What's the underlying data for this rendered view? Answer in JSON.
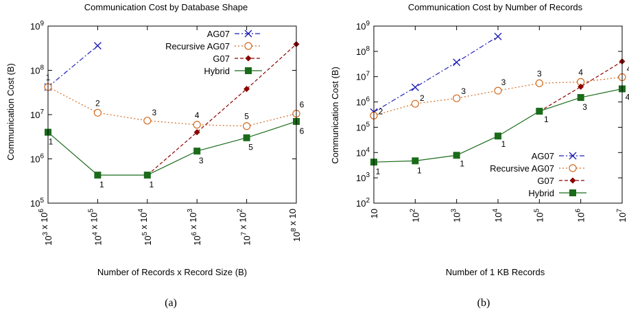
{
  "chart_data": [
    {
      "type": "line",
      "title": "Communication Cost by Database Shape",
      "xlabel": "Number of Records x Record Size (B)",
      "ylabel": "Communication Cost (B)",
      "y_scale": "log",
      "ylim": [
        100000,
        1000000000
      ],
      "grid": false,
      "legend_position": "top-right",
      "panel_label": "(a)",
      "x_ticks": [
        {
          "base": "10",
          "exp": "3",
          "suffix": " x 10",
          "suffix_exp": "6"
        },
        {
          "base": "10",
          "exp": "4",
          "suffix": " x 10",
          "suffix_exp": "5"
        },
        {
          "base": "10",
          "exp": "5",
          "suffix": " x 10",
          "suffix_exp": "4"
        },
        {
          "base": "10",
          "exp": "6",
          "suffix": " x 10",
          "suffix_exp": "3"
        },
        {
          "base": "10",
          "exp": "7",
          "suffix": " x 10",
          "suffix_exp": "2"
        },
        {
          "base": "10",
          "exp": "8",
          "suffix": " x 10",
          "suffix_exp": ""
        }
      ],
      "y_ticks": [
        {
          "base": "10",
          "exp": "5",
          "value": 100000
        },
        {
          "base": "10",
          "exp": "6",
          "value": 1000000
        },
        {
          "base": "10",
          "exp": "7",
          "value": 10000000
        },
        {
          "base": "10",
          "exp": "8",
          "value": 100000000
        },
        {
          "base": "10",
          "exp": "9",
          "value": 1000000000
        }
      ],
      "series": [
        {
          "name": "AG07",
          "color": "#1f1fb8",
          "marker": "x",
          "dash": "dashdot",
          "x": [
            0,
            1
          ],
          "values": [
            42000000,
            360000000
          ],
          "labels": []
        },
        {
          "name": "Recursive AG07",
          "color": "#d2691e",
          "marker": "circle",
          "dash": "dotted",
          "x": [
            0,
            1,
            2,
            3,
            4,
            5
          ],
          "values": [
            42000000,
            11000000,
            7300000,
            5900000,
            5500000,
            10500000
          ],
          "labels": [
            "1",
            "2",
            "3",
            "4",
            "5",
            "6"
          ]
        },
        {
          "name": "G07",
          "color": "#8b0000",
          "marker": "diamond",
          "dash": "dashed",
          "x": [
            2,
            3,
            4,
            5
          ],
          "values": [
            430000,
            4000000,
            38000000,
            390000000
          ],
          "labels": []
        },
        {
          "name": "Hybrid",
          "color": "#1a6b1a",
          "marker": "square",
          "dash": "solid",
          "x": [
            0,
            1,
            2,
            3,
            4,
            5
          ],
          "values": [
            4000000,
            430000,
            430000,
            1500000,
            3000000,
            7000000
          ],
          "labels": [
            "1",
            "1",
            "1",
            "3",
            "5",
            "6"
          ]
        }
      ]
    },
    {
      "type": "line",
      "title": "Communication Cost by Number of Records",
      "xlabel": "Number of 1 KB Records",
      "ylabel": "Communication Cost (B)",
      "y_scale": "log",
      "x_scale": "log",
      "ylim": [
        100,
        1000000000
      ],
      "grid": false,
      "legend_position": "bottom-right",
      "panel_label": "(b)",
      "x_ticks": [
        {
          "base": "10",
          "exp": ""
        },
        {
          "base": "10",
          "exp": "2"
        },
        {
          "base": "10",
          "exp": "3"
        },
        {
          "base": "10",
          "exp": "4"
        },
        {
          "base": "10",
          "exp": "5"
        },
        {
          "base": "10",
          "exp": "6"
        },
        {
          "base": "10",
          "exp": "7"
        }
      ],
      "y_ticks": [
        {
          "base": "10",
          "exp": "2",
          "value": 100
        },
        {
          "base": "10",
          "exp": "3",
          "value": 1000
        },
        {
          "base": "10",
          "exp": "4",
          "value": 10000
        },
        {
          "base": "10",
          "exp": "5",
          "value": 100000
        },
        {
          "base": "10",
          "exp": "6",
          "value": 1000000
        },
        {
          "base": "10",
          "exp": "7",
          "value": 10000000
        },
        {
          "base": "10",
          "exp": "8",
          "value": 100000000
        },
        {
          "base": "10",
          "exp": "9",
          "value": 1000000000
        }
      ],
      "series": [
        {
          "name": "AG07",
          "color": "#1f1fb8",
          "marker": "x",
          "dash": "dashdot",
          "x": [
            10,
            100,
            1000,
            10000
          ],
          "values": [
            400000,
            3800000,
            37000000,
            390000000
          ],
          "labels": []
        },
        {
          "name": "Recursive AG07",
          "color": "#d2691e",
          "marker": "circle",
          "dash": "dotted",
          "x": [
            10,
            100,
            1000,
            10000,
            100000,
            1000000,
            10000000
          ],
          "values": [
            290000,
            850000,
            1400000,
            2800000,
            5500000,
            6200000,
            9500000
          ],
          "labels": [
            "2",
            "2",
            "3",
            "3",
            "3",
            "4",
            "4"
          ]
        },
        {
          "name": "G07",
          "color": "#8b0000",
          "marker": "diamond",
          "dash": "dashed",
          "x": [
            100000,
            1000000,
            10000000
          ],
          "values": [
            420000,
            4000000,
            40000000
          ],
          "labels": []
        },
        {
          "name": "Hybrid",
          "color": "#1a6b1a",
          "marker": "square",
          "dash": "solid",
          "x": [
            10,
            100,
            1000,
            10000,
            100000,
            1000000,
            10000000
          ],
          "values": [
            4200,
            4700,
            7800,
            45000,
            430000,
            1500000,
            3300000
          ],
          "labels": [
            "1",
            "1",
            "1",
            "1",
            "1",
            "3",
            "4"
          ]
        }
      ]
    }
  ]
}
